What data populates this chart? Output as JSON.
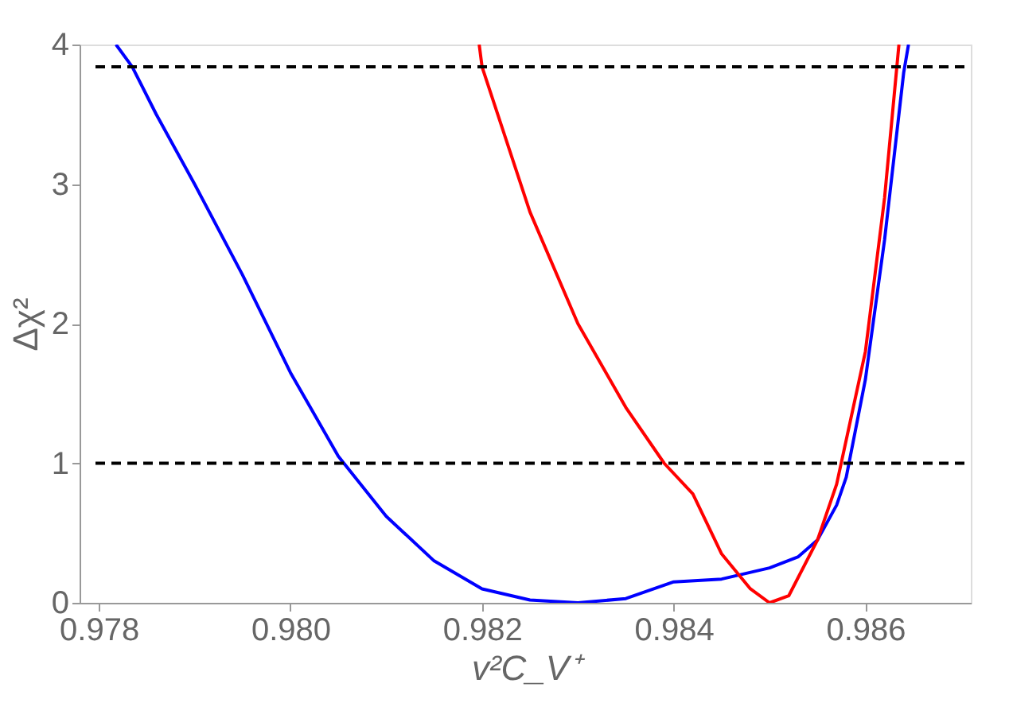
{
  "chart_data": {
    "type": "line",
    "xlabel": "v²C_V⁺",
    "ylabel": "Δχ²",
    "xlim": [
      0.9778,
      0.9871
    ],
    "ylim": [
      0,
      4
    ],
    "xticks": [
      {
        "value": 0.978,
        "label": "0.978"
      },
      {
        "value": 0.98,
        "label": "0.980"
      },
      {
        "value": 0.982,
        "label": "0.982"
      },
      {
        "value": 0.984,
        "label": "0.984"
      },
      {
        "value": 0.986,
        "label": "0.986"
      }
    ],
    "yticks": [
      0,
      1,
      2,
      3,
      4
    ],
    "grid": false,
    "legend": false,
    "marker": "none",
    "line_style": "solid",
    "series": [
      {
        "color": "#0000ff",
        "x": [
          0.97818,
          0.97835,
          0.9786,
          0.979,
          0.9795,
          0.98,
          0.9805,
          0.981,
          0.9815,
          0.982,
          0.9825,
          0.983,
          0.9835,
          0.984,
          0.9845,
          0.985,
          0.9853,
          0.9855,
          0.9857,
          0.9858,
          0.986,
          0.9862,
          0.9864,
          0.98645
        ],
        "values": [
          4,
          3.84,
          3.5,
          3.0,
          2.35,
          1.65,
          1.05,
          0.62,
          0.3,
          0.1,
          0.02,
          0,
          0.03,
          0.15,
          0.17,
          0.25,
          0.33,
          0.45,
          0.7,
          0.9,
          1.6,
          2.6,
          3.8,
          4
        ]
      },
      {
        "color": "#ff0000",
        "x": [
          0.98197,
          0.982,
          0.9825,
          0.983,
          0.9835,
          0.9839,
          0.9842,
          0.9845,
          0.9848,
          0.985,
          0.9852,
          0.9855,
          0.9857,
          0.986,
          0.9862,
          0.98635
        ],
        "values": [
          4,
          3.84,
          2.8,
          2.0,
          1.4,
          1.0,
          0.78,
          0.35,
          0.1,
          0,
          0.05,
          0.45,
          0.85,
          1.8,
          2.9,
          4
        ]
      }
    ],
    "ref_lines": [
      {
        "axis": "y",
        "value": 3.84,
        "color": "#000000",
        "line_style": "dashed"
      },
      {
        "axis": "y",
        "value": 1,
        "color": "#000000",
        "line_style": "dashed"
      }
    ]
  }
}
